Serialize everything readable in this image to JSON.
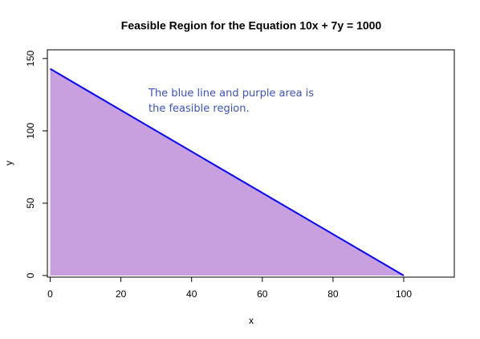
{
  "chart_data": {
    "type": "line",
    "title": "Feasible Region for the Equation 10x + 7y = 1000",
    "x_label": "x",
    "y_label": "y",
    "annotation": [
      "The blue line and purple area is",
      "the feasible region."
    ],
    "line": {
      "x": [
        0,
        100
      ],
      "y": [
        142.857,
        0
      ],
      "color": "#0000ff"
    },
    "area": {
      "x": [
        0,
        0,
        100
      ],
      "y": [
        0,
        142.857,
        0
      ],
      "color": "#c8a0e0"
    },
    "xlim": [
      -0.8,
      114.3
    ],
    "ylim": [
      -1.1,
      156
    ],
    "xticks": [
      0,
      20,
      40,
      60,
      80,
      100
    ],
    "yticks": [
      0,
      50,
      100,
      150
    ]
  }
}
